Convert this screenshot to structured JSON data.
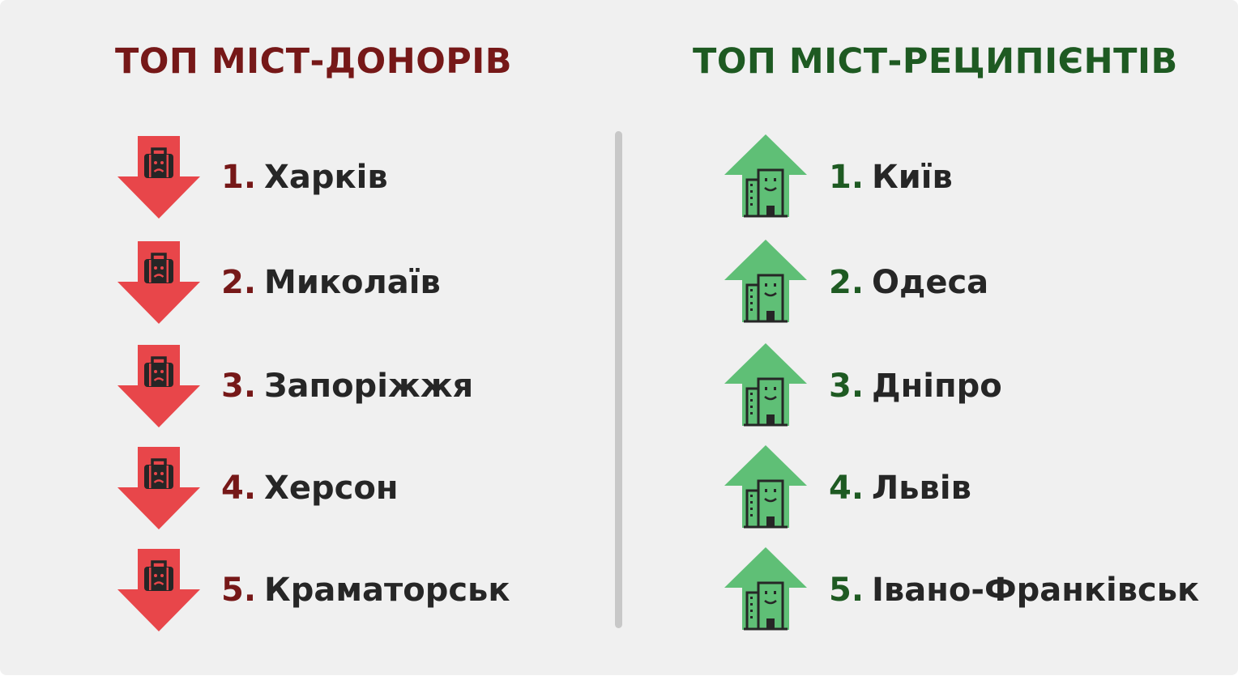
{
  "colors": {
    "donor_title": "#761818",
    "donor_rank": "#761818",
    "donor_icon_fill": "#e8464a",
    "recipient_title": "#1e5a22",
    "recipient_rank": "#1e5a22",
    "recipient_icon_fill": "#5fbf76",
    "icon_glyph": "#262626"
  },
  "donors": {
    "title": "ТОП МІСТ-ДОНОРІВ",
    "icon": "down-arrow-suitcase-sad-icon",
    "items": [
      {
        "rank": "1.",
        "name": "Харків"
      },
      {
        "rank": "2.",
        "name": "Миколаїв"
      },
      {
        "rank": "3.",
        "name": "Запоріжжя"
      },
      {
        "rank": "4.",
        "name": "Херсон"
      },
      {
        "rank": "5.",
        "name": "Краматорськ"
      }
    ]
  },
  "recipients": {
    "title": "ТОП МІСТ-РЕЦИПІЄНТІВ",
    "icon": "up-arrow-building-smile-icon",
    "items": [
      {
        "rank": "1.",
        "name": "Київ"
      },
      {
        "rank": "2.",
        "name": "Одеса"
      },
      {
        "rank": "3.",
        "name": "Дніпро"
      },
      {
        "rank": "4.",
        "name": "Львів"
      },
      {
        "rank": "5.",
        "name": "Івано-Франківськ"
      }
    ]
  }
}
